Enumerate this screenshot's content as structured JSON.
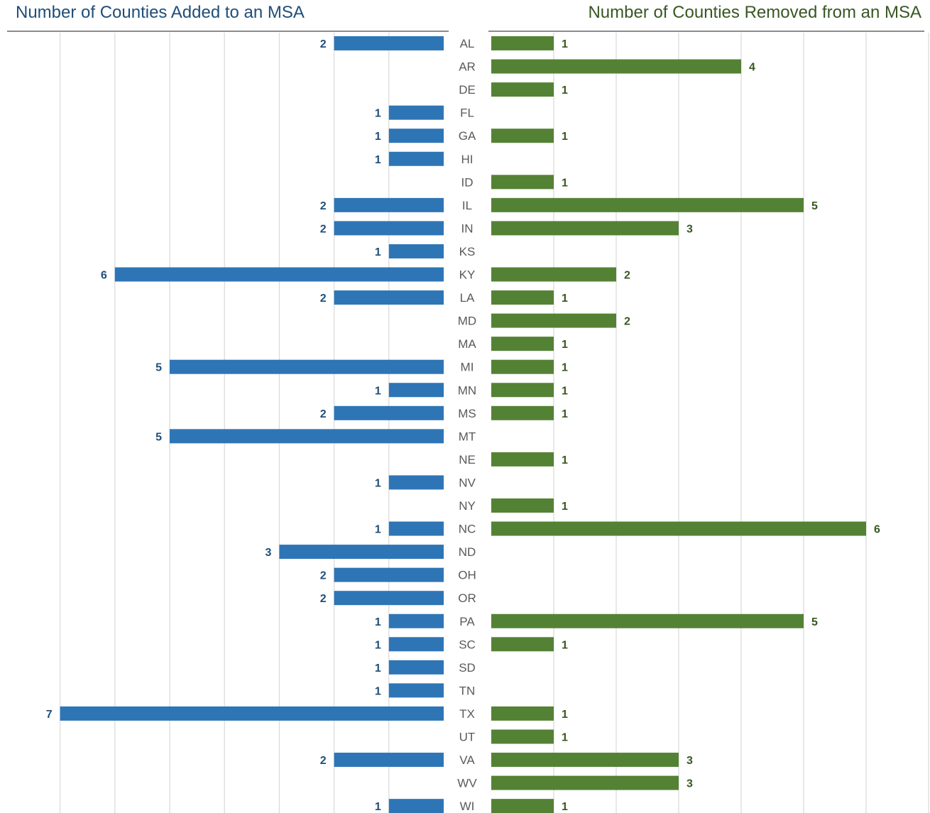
{
  "colors": {
    "added": "#2e75b6",
    "removed": "#548235",
    "added_title": "#1f4e79",
    "removed_title": "#385723",
    "state_label": "#595959",
    "gridline": "#d9d9d9",
    "rule": "#8c8c8c"
  },
  "chart_data": [
    {
      "type": "bar",
      "orientation": "horizontal",
      "direction": "leftward",
      "title": "Number of Counties Added to an MSA",
      "categories": [
        "AL",
        "AR",
        "DE",
        "FL",
        "GA",
        "HI",
        "ID",
        "IL",
        "IN",
        "KS",
        "KY",
        "LA",
        "MD",
        "MA",
        "MI",
        "MN",
        "MS",
        "MT",
        "NE",
        "NV",
        "NY",
        "NC",
        "ND",
        "OH",
        "OR",
        "PA",
        "SC",
        "SD",
        "TN",
        "TX",
        "UT",
        "VA",
        "WV",
        "WI"
      ],
      "values": [
        2,
        null,
        null,
        1,
        1,
        1,
        null,
        2,
        2,
        1,
        6,
        2,
        null,
        null,
        5,
        1,
        2,
        5,
        null,
        1,
        null,
        1,
        3,
        2,
        2,
        1,
        1,
        1,
        1,
        7,
        null,
        2,
        null,
        1
      ],
      "xlim": [
        0,
        7
      ],
      "grid": true,
      "data_labels": true
    },
    {
      "type": "bar",
      "orientation": "horizontal",
      "direction": "rightward",
      "title": "Number of Counties Removed from an MSA",
      "categories": [
        "AL",
        "AR",
        "DE",
        "FL",
        "GA",
        "HI",
        "ID",
        "IL",
        "IN",
        "KS",
        "KY",
        "LA",
        "MD",
        "MA",
        "MI",
        "MN",
        "MS",
        "MT",
        "NE",
        "NV",
        "NY",
        "NC",
        "ND",
        "OH",
        "OR",
        "PA",
        "SC",
        "SD",
        "TN",
        "TX",
        "UT",
        "VA",
        "WV",
        "WI"
      ],
      "values": [
        1,
        4,
        1,
        null,
        1,
        null,
        1,
        5,
        3,
        null,
        2,
        1,
        2,
        1,
        1,
        1,
        1,
        null,
        1,
        null,
        1,
        6,
        null,
        null,
        null,
        5,
        1,
        null,
        null,
        1,
        1,
        3,
        3,
        1
      ],
      "xlim": [
        0,
        7
      ],
      "grid": true,
      "data_labels": true
    }
  ]
}
